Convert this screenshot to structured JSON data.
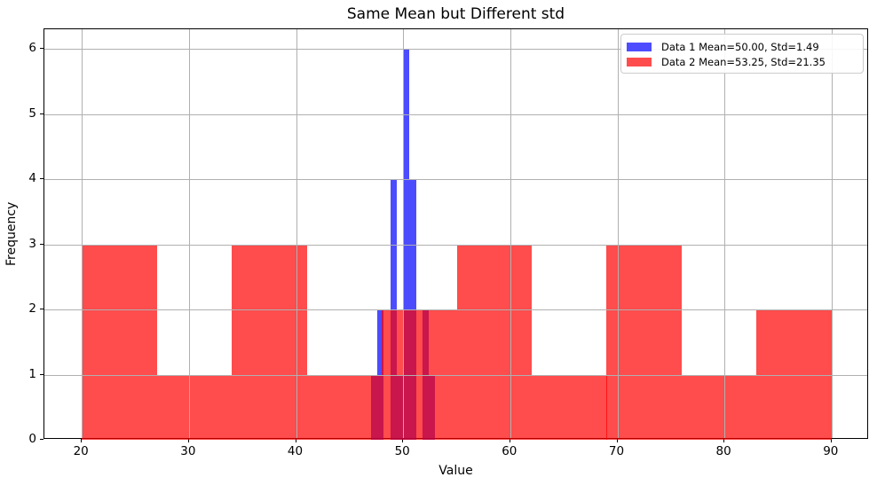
{
  "title": "Same Mean but Different std",
  "x_axis_label": "Value",
  "y_axis_label": "Frequency",
  "legend": {
    "items": [
      {
        "label": "Data 1 Mean=50.00, Std=1.49",
        "swatch_color": "#4d4dff"
      },
      {
        "label": "Data 2 Mean=53.25, Std=21.35",
        "swatch_color": "#ff4d4d"
      }
    ]
  },
  "chart_data": {
    "type": "histogram",
    "title": "Same Mean but Different std",
    "xlabel": "Value",
    "ylabel": "Frequency",
    "grid": true,
    "grid_color": "#b0b0b0",
    "legend_position": "upper right",
    "xlim": [
      16.5,
      93.5
    ],
    "ylim": [
      0,
      6.3
    ],
    "xticks": [
      20,
      30,
      40,
      50,
      60,
      70,
      80,
      90
    ],
    "yticks": [
      0,
      1,
      2,
      3,
      4,
      5,
      6
    ],
    "series": [
      {
        "name": "Data 1",
        "mean": 50.0,
        "std": 1.49,
        "color": "#0000ff",
        "alpha": 0.7,
        "bin_edges": [
          47.0,
          47.6,
          48.2,
          48.8,
          49.4,
          50.0,
          50.6,
          51.2,
          51.8,
          52.4,
          53.0
        ],
        "counts": [
          1,
          2,
          0,
          4,
          1,
          6,
          4,
          0,
          2,
          1
        ]
      },
      {
        "name": "Data 2",
        "mean": 53.25,
        "std": 21.35,
        "color": "#ff0000",
        "alpha": 0.7,
        "bin_edges": [
          20,
          27,
          34,
          41,
          48,
          55,
          62,
          69,
          76,
          83,
          90
        ],
        "counts": [
          3,
          1,
          3,
          1,
          2,
          3,
          1,
          3,
          1,
          2
        ]
      }
    ]
  }
}
